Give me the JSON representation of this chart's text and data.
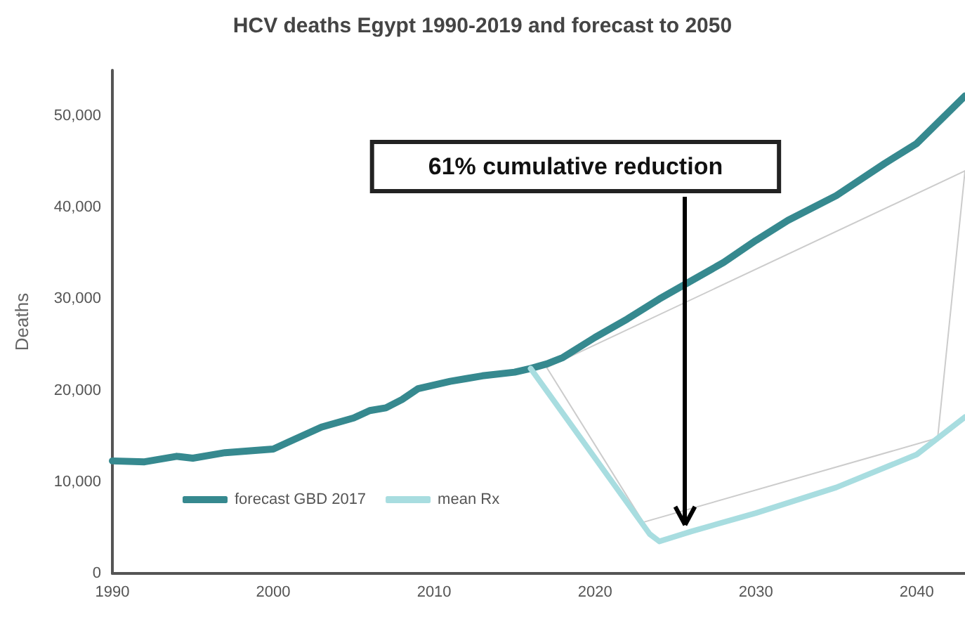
{
  "chart_data": {
    "type": "line",
    "title": "HCV deaths Egypt 1990-2019 and forecast to 2050",
    "ylabel": "Deaths",
    "xlim": [
      1990,
      2043
    ],
    "xticks": [
      1990,
      2000,
      2010,
      2020,
      2030,
      2040
    ],
    "ylim": [
      0,
      55000
    ],
    "yticks": [
      {
        "value": 0,
        "label": "0"
      },
      {
        "value": 10000,
        "label": "10,000"
      },
      {
        "value": 20000,
        "label": "20,000"
      },
      {
        "value": 30000,
        "label": "30,000"
      },
      {
        "value": 40000,
        "label": "40,000"
      },
      {
        "value": 50000,
        "label": "50,000"
      }
    ],
    "grid": false,
    "legend": "bottom left",
    "series": [
      {
        "name": "forecast GBD 2017",
        "color": "#36898f",
        "x": [
          1990,
          1992,
          1994,
          1995,
          1997,
          2000,
          2001,
          2003,
          2005,
          2006,
          2007,
          2008,
          2009,
          2011,
          2012,
          2013,
          2015,
          2016,
          2017,
          2018,
          2020,
          2022,
          2024,
          2026,
          2028,
          2030,
          2032,
          2035,
          2038,
          2040,
          2043
        ],
        "values": [
          12300,
          12200,
          12800,
          12600,
          13200,
          13600,
          14400,
          16000,
          17000,
          17800,
          18100,
          19000,
          20200,
          21000,
          21300,
          21600,
          22000,
          22400,
          22900,
          23600,
          25800,
          27800,
          30000,
          32000,
          34000,
          36400,
          38600,
          41300,
          44800,
          47000,
          52200
        ]
      },
      {
        "name": "mean Rx",
        "color": "#a8dde0",
        "x": [
          2016,
          2023.4,
          2024,
          2026,
          2030,
          2035,
          2040,
          2043
        ],
        "values": [
          22400,
          4300,
          3500,
          4600,
          6600,
          9400,
          13000,
          17100
        ]
      },
      {
        "color": "#cccccc",
        "x": [
          2017,
          2023,
          2041.3,
          2043
        ],
        "values": [
          22500,
          5600,
          14800,
          44000
        ]
      },
      {
        "color": "#cccccc",
        "x": [
          2017,
          2043
        ],
        "values": [
          22500,
          44000
        ]
      }
    ],
    "annotations": [
      {
        "text": "61% cumulative reduction",
        "x": 2025.6,
        "y": 5300
      }
    ]
  }
}
